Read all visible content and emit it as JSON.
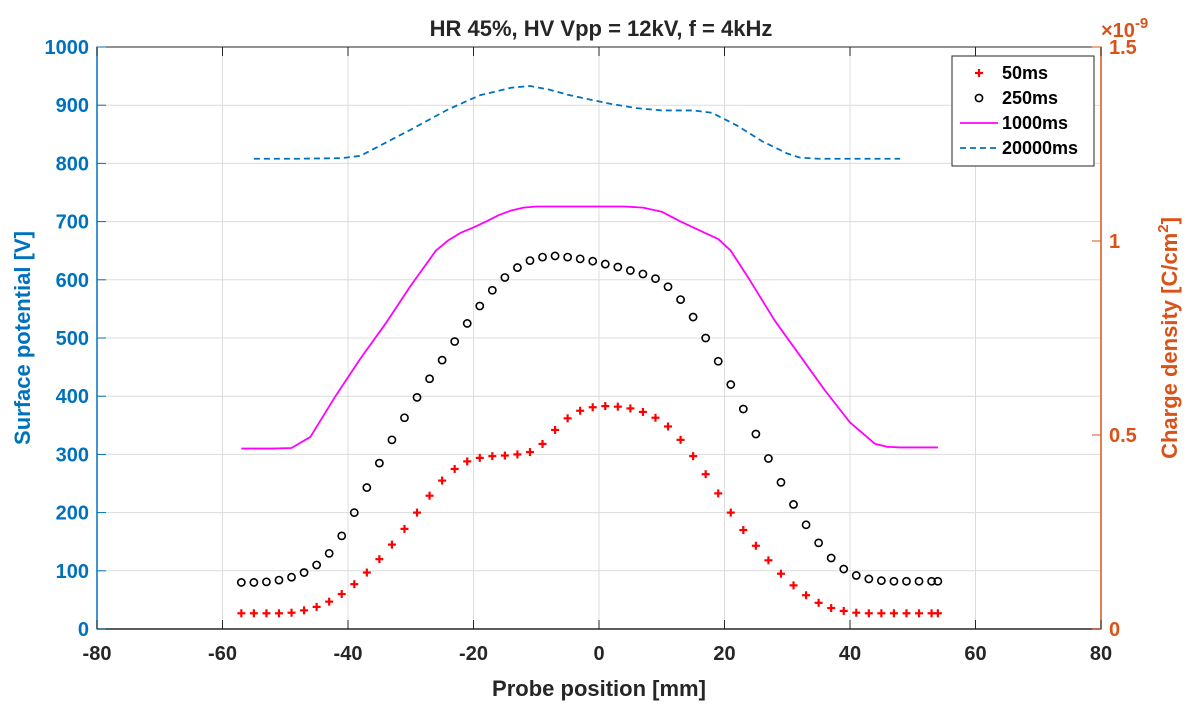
{
  "chart_data": {
    "type": "line",
    "title": "HR 45%, HV Vpp = 12kV, f = 4kHz",
    "xlabel": "Probe position [mm]",
    "ylabel": "Surface potential [V]",
    "ylabel_right": "Charge density [C/cm",
    "ylabel_right_sup": "2",
    "ylabel_right_end": "]",
    "right_exponent_base": "×10",
    "right_exponent_power": "-9",
    "xlim": [
      -80,
      80
    ],
    "ylim": [
      0,
      1000
    ],
    "ylim_right": [
      0,
      1.5
    ],
    "xticks": [
      -80,
      -60,
      -40,
      -20,
      0,
      20,
      40,
      60,
      80
    ],
    "yticks": [
      0,
      100,
      200,
      300,
      400,
      500,
      600,
      700,
      800,
      900,
      1000
    ],
    "yticks_right": [
      0,
      0.5,
      1,
      1.5
    ],
    "yticks_right_labels": [
      "0",
      "0.5",
      "1",
      "1.5"
    ],
    "grid": true,
    "legend_position": "top-right",
    "colors": {
      "left_axis": "#0072BD",
      "right_axis": "#D95319"
    },
    "series": [
      {
        "name": "50ms",
        "style": "plus",
        "color": "#ff0000",
        "x": [
          -57,
          -55,
          -53,
          -51,
          -49,
          -47,
          -45,
          -43,
          -41,
          -39,
          -37,
          -35,
          -33,
          -31,
          -29,
          -27,
          -25,
          -23,
          -21,
          -19,
          -17,
          -15,
          -13,
          -11,
          -9,
          -7,
          -5,
          -3,
          -1,
          1,
          3,
          5,
          7,
          9,
          11,
          13,
          15,
          17,
          19,
          21,
          23,
          25,
          27,
          29,
          31,
          33,
          35,
          37,
          39,
          41,
          43,
          45,
          47,
          49,
          51,
          53,
          54
        ],
        "y": [
          27,
          27,
          27,
          27,
          28,
          32,
          38,
          47,
          60,
          77,
          97,
          120,
          145,
          172,
          200,
          229,
          255,
          275,
          288,
          294,
          297,
          298,
          300,
          304,
          318,
          342,
          362,
          375,
          381,
          383,
          382,
          379,
          373,
          363,
          348,
          325,
          297,
          266,
          233,
          200,
          170,
          143,
          118,
          95,
          75,
          58,
          45,
          36,
          31,
          28,
          27,
          27,
          27,
          27,
          27,
          27,
          27
        ]
      },
      {
        "name": "250ms",
        "style": "circle",
        "color": "#000000",
        "x": [
          -57,
          -55,
          -53,
          -51,
          -49,
          -47,
          -45,
          -43,
          -41,
          -39,
          -37,
          -35,
          -33,
          -31,
          -29,
          -27,
          -25,
          -23,
          -21,
          -19,
          -17,
          -15,
          -13,
          -11,
          -9,
          -7,
          -5,
          -3,
          -1,
          1,
          3,
          5,
          7,
          9,
          11,
          13,
          15,
          17,
          19,
          21,
          23,
          25,
          27,
          29,
          31,
          33,
          35,
          37,
          39,
          41,
          43,
          45,
          47,
          49,
          51,
          53,
          54
        ],
        "y": [
          80,
          80,
          81,
          84,
          89,
          97,
          110,
          130,
          160,
          200,
          243,
          285,
          325,
          363,
          398,
          430,
          462,
          494,
          525,
          555,
          582,
          604,
          621,
          633,
          639,
          641,
          639,
          636,
          632,
          627,
          622,
          616,
          610,
          602,
          588,
          566,
          536,
          500,
          460,
          420,
          378,
          335,
          293,
          252,
          214,
          179,
          148,
          122,
          103,
          92,
          86,
          83,
          82,
          82,
          82,
          82,
          82
        ]
      },
      {
        "name": "1000ms",
        "style": "line",
        "color": "#ff00ff",
        "x": [
          -57,
          -52,
          -49,
          -46,
          -42,
          -38,
          -34,
          -30,
          -26,
          -24,
          -22,
          -20,
          -18,
          -16,
          -14,
          -12,
          -10,
          -7,
          -4,
          0,
          4,
          7,
          10,
          13,
          16,
          19,
          21,
          24,
          28,
          32,
          36,
          40,
          44,
          46,
          48,
          51,
          54
        ],
        "y": [
          310,
          310,
          311,
          330,
          400,
          465,
          525,
          590,
          650,
          668,
          681,
          690,
          700,
          711,
          719,
          724,
          726,
          726,
          726,
          726,
          726,
          724,
          717,
          700,
          685,
          670,
          650,
          600,
          530,
          470,
          410,
          355,
          318,
          313,
          312,
          312,
          312
        ]
      },
      {
        "name": "20000ms",
        "style": "dashed",
        "color": "#0072BD",
        "x": [
          -55,
          -48,
          -41,
          -38,
          -35,
          -30,
          -24,
          -19,
          -14,
          -11,
          -8,
          -5,
          -2,
          2,
          6,
          10,
          15,
          18,
          22,
          26,
          30,
          32,
          35,
          40,
          48
        ],
        "y": [
          808,
          808,
          809,
          813,
          830,
          858,
          893,
          917,
          930,
          933,
          927,
          918,
          911,
          902,
          895,
          891,
          891,
          887,
          865,
          838,
          817,
          810,
          808,
          808,
          808
        ]
      }
    ]
  }
}
